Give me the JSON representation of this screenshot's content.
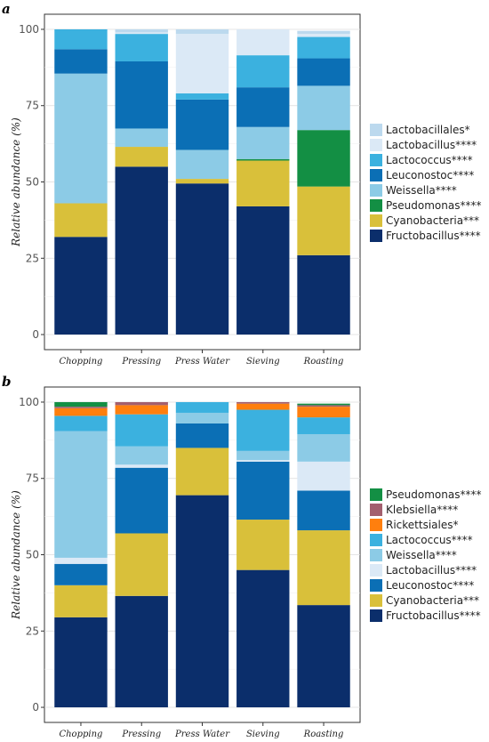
{
  "chart_data": [
    {
      "type": "bar",
      "stacked": true,
      "panel": "a",
      "categories": [
        "Chopping",
        "Pressing",
        "Press Water",
        "Sieving",
        "Roasting"
      ],
      "ylabel": "Relative abundance (%)",
      "xlabel": "",
      "ylim": [
        0,
        100
      ],
      "yticks": [
        0,
        25,
        50,
        75,
        100
      ],
      "grid": true,
      "legend_position": "right",
      "series": [
        {
          "name": "Fructobacillus****",
          "color": "#0b2e6b",
          "values": [
            32,
            55,
            49.5,
            42,
            26
          ]
        },
        {
          "name": "Cyanobacteria***",
          "color": "#d9c03a",
          "values": [
            11,
            6.5,
            1.5,
            15,
            22.5
          ]
        },
        {
          "name": "Pseudomonas****",
          "color": "#138f44",
          "values": [
            0,
            0,
            0,
            0.5,
            18.5
          ]
        },
        {
          "name": "Weissella****",
          "color": "#8ccbe6",
          "values": [
            42.5,
            6,
            9.5,
            10.5,
            14.5
          ]
        },
        {
          "name": "Leuconostoc****",
          "color": "#0b6fb5",
          "values": [
            8,
            22,
            16.5,
            13,
            9
          ]
        },
        {
          "name": "Lactococcus****",
          "color": "#3bb1df",
          "values": [
            6.5,
            9,
            2,
            10.5,
            7
          ]
        },
        {
          "name": "Lactobacillus****",
          "color": "#dbe9f6",
          "values": [
            0,
            0.5,
            19.5,
            8.5,
            1
          ]
        },
        {
          "name": "Lactobacillales*",
          "color": "#bcd9ee",
          "values": [
            0,
            1,
            1.5,
            0,
            1
          ]
        }
      ],
      "legend_order": [
        "Lactobacillales*",
        "Lactobacillus****",
        "Lactococcus****",
        "Leuconostoc****",
        "Weissella****",
        "Pseudomonas****",
        "Cyanobacteria***",
        "Fructobacillus****"
      ]
    },
    {
      "type": "bar",
      "stacked": true,
      "panel": "b",
      "categories": [
        "Chopping",
        "Pressing",
        "Press Water",
        "Sieving",
        "Roasting"
      ],
      "ylabel": "Relative abundance (%)",
      "xlabel": "",
      "ylim": [
        0,
        100
      ],
      "yticks": [
        0,
        25,
        50,
        75,
        100
      ],
      "grid": true,
      "legend_position": "right",
      "series": [
        {
          "name": "Fructobacillus****",
          "color": "#0b2e6b",
          "values": [
            29.5,
            36.5,
            69.5,
            45,
            33.5
          ]
        },
        {
          "name": "Cyanobacteria***",
          "color": "#d9c03a",
          "values": [
            10.5,
            20.5,
            15.5,
            16.5,
            24.5
          ]
        },
        {
          "name": "Leuconostoc****",
          "color": "#0b6fb5",
          "values": [
            7,
            21.5,
            8,
            19,
            13
          ]
        },
        {
          "name": "Lactobacillus****",
          "color": "#dbe9f6",
          "values": [
            2,
            1,
            0,
            0.5,
            9.5
          ]
        },
        {
          "name": "Weissella****",
          "color": "#8ccbe6",
          "values": [
            41.5,
            6,
            3.5,
            3,
            9
          ]
        },
        {
          "name": "Lactococcus****",
          "color": "#3bb1df",
          "values": [
            5,
            10.5,
            3.5,
            13.5,
            5.5
          ]
        },
        {
          "name": "Rickettsiales*",
          "color": "#ff7f0e",
          "values": [
            2.5,
            3,
            0,
            2,
            3.5
          ]
        },
        {
          "name": "Klebsiella****",
          "color": "#a35f6e",
          "values": [
            0.5,
            1,
            0,
            0.5,
            0.5
          ]
        },
        {
          "name": "Pseudomonas****",
          "color": "#138f44",
          "values": [
            1.5,
            0,
            0,
            0,
            0.5
          ]
        }
      ],
      "legend_order": [
        "Pseudomonas****",
        "Klebsiella****",
        "Rickettsiales*",
        "Lactococcus****",
        "Weissella****",
        "Lactobacillus****",
        "Leuconostoc****",
        "Cyanobacteria***",
        "Fructobacillus****"
      ]
    }
  ]
}
